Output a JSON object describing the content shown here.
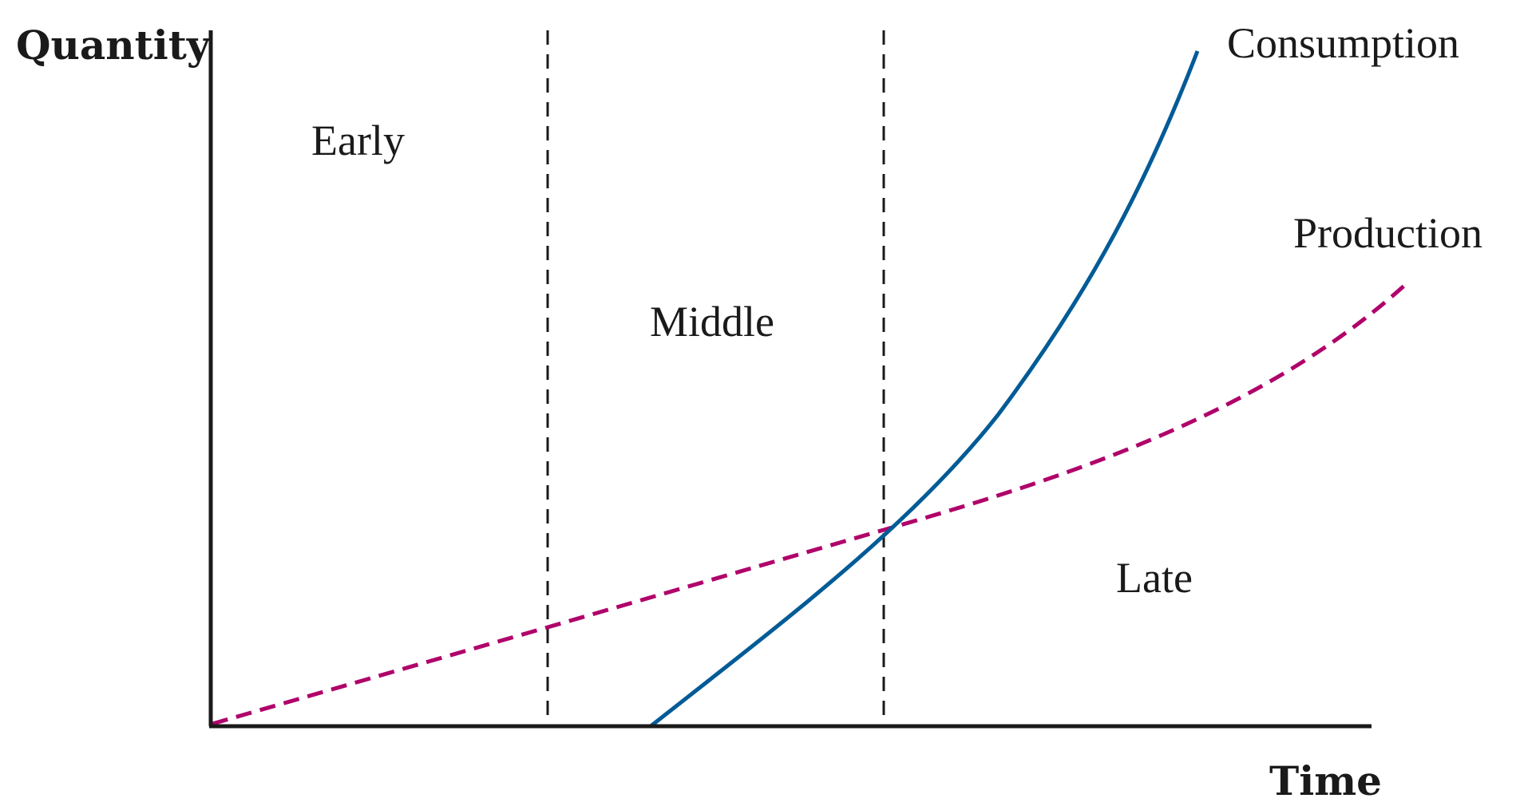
{
  "axes": {
    "y_label": "Quantity",
    "x_label": "Time"
  },
  "regions": [
    {
      "label": "Early"
    },
    {
      "label": "Middle"
    },
    {
      "label": "Late"
    }
  ],
  "series": {
    "consumption": {
      "label": "Consumption",
      "color": "#005b96",
      "style": "solid"
    },
    "production": {
      "label": "Production",
      "color": "#b0006a",
      "style": "dashed"
    }
  }
}
